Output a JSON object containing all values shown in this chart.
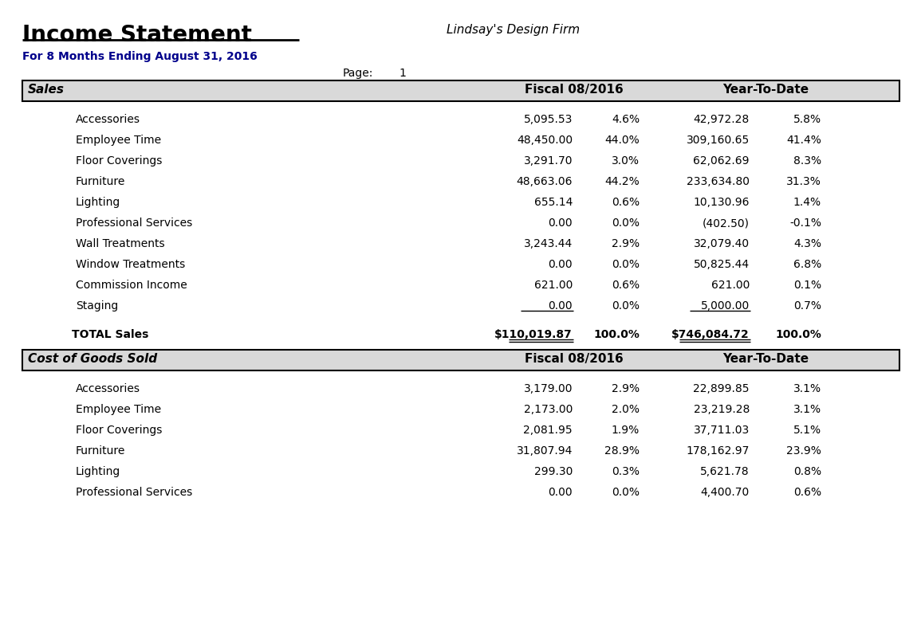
{
  "title": "Income Statement",
  "company": "Lindsay's Design Firm",
  "subtitle": "For 8 Months Ending August 31, 2016",
  "page_label": "Page:",
  "page_number": "1",
  "bg_color": "#ffffff",
  "header_bg": "#d9d9d9",
  "header_border": "#000000",
  "subtitle_color": "#00008B",
  "section1_header": "Sales",
  "section2_header": "Cost of Goods Sold",
  "col1_header": "Fiscal 08/2016",
  "col2_header": "Year-To-Date",
  "sales_items": [
    {
      "name": "Accessories",
      "fiscal_val": "5,095.53",
      "fiscal_pct": "4.6%",
      "ytd_val": "42,972.28",
      "ytd_pct": "5.8%",
      "underline": false
    },
    {
      "name": "Employee Time",
      "fiscal_val": "48,450.00",
      "fiscal_pct": "44.0%",
      "ytd_val": "309,160.65",
      "ytd_pct": "41.4%",
      "underline": false
    },
    {
      "name": "Floor Coverings",
      "fiscal_val": "3,291.70",
      "fiscal_pct": "3.0%",
      "ytd_val": "62,062.69",
      "ytd_pct": "8.3%",
      "underline": false
    },
    {
      "name": "Furniture",
      "fiscal_val": "48,663.06",
      "fiscal_pct": "44.2%",
      "ytd_val": "233,634.80",
      "ytd_pct": "31.3%",
      "underline": false
    },
    {
      "name": "Lighting",
      "fiscal_val": "655.14",
      "fiscal_pct": "0.6%",
      "ytd_val": "10,130.96",
      "ytd_pct": "1.4%",
      "underline": false
    },
    {
      "name": "Professional Services",
      "fiscal_val": "0.00",
      "fiscal_pct": "0.0%",
      "ytd_val": "(402.50)",
      "ytd_pct": "-0.1%",
      "underline": false
    },
    {
      "name": "Wall Treatments",
      "fiscal_val": "3,243.44",
      "fiscal_pct": "2.9%",
      "ytd_val": "32,079.40",
      "ytd_pct": "4.3%",
      "underline": false
    },
    {
      "name": "Window Treatments",
      "fiscal_val": "0.00",
      "fiscal_pct": "0.0%",
      "ytd_val": "50,825.44",
      "ytd_pct": "6.8%",
      "underline": false
    },
    {
      "name": "Commission Income",
      "fiscal_val": "621.00",
      "fiscal_pct": "0.6%",
      "ytd_val": "621.00",
      "ytd_pct": "0.1%",
      "underline": false
    },
    {
      "name": "Staging",
      "fiscal_val": "0.00",
      "fiscal_pct": "0.0%",
      "ytd_val": "5,000.00",
      "ytd_pct": "0.7%",
      "underline": true
    }
  ],
  "sales_total": {
    "name": "TOTAL Sales",
    "fiscal_val": "$110,019.87",
    "fiscal_pct": "100.0%",
    "ytd_val": "$746,084.72",
    "ytd_pct": "100.0%"
  },
  "cogs_items": [
    {
      "name": "Accessories",
      "fiscal_val": "3,179.00",
      "fiscal_pct": "2.9%",
      "ytd_val": "22,899.85",
      "ytd_pct": "3.1%",
      "underline": false
    },
    {
      "name": "Employee Time",
      "fiscal_val": "2,173.00",
      "fiscal_pct": "2.0%",
      "ytd_val": "23,219.28",
      "ytd_pct": "3.1%",
      "underline": false
    },
    {
      "name": "Floor Coverings",
      "fiscal_val": "2,081.95",
      "fiscal_pct": "1.9%",
      "ytd_val": "37,711.03",
      "ytd_pct": "5.1%",
      "underline": false
    },
    {
      "name": "Furniture",
      "fiscal_val": "31,807.94",
      "fiscal_pct": "28.9%",
      "ytd_val": "178,162.97",
      "ytd_pct": "23.9%",
      "underline": false
    },
    {
      "name": "Lighting",
      "fiscal_val": "299.30",
      "fiscal_pct": "0.3%",
      "ytd_val": "5,621.78",
      "ytd_pct": "0.8%",
      "underline": false
    },
    {
      "name": "Professional Services",
      "fiscal_val": "0.00",
      "fiscal_pct": "0.0%",
      "ytd_val": "4,400.70",
      "ytd_pct": "0.6%",
      "underline": false
    }
  ]
}
